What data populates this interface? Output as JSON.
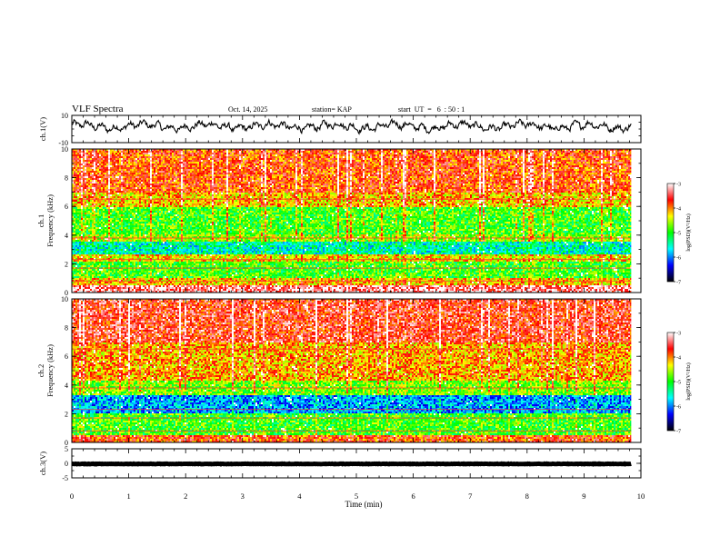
{
  "header": {
    "title": "VLF Spectra",
    "date": "Oct. 14, 2025",
    "station": "station= KAP",
    "start": "start  UT  =   6  : 50 : 1"
  },
  "chart_data": [
    {
      "type": "line",
      "panel": "ch1-waveform",
      "ylabel": "ch.1(V)",
      "ylim": [
        -10,
        10
      ],
      "yticks": [
        "10",
        "-10"
      ],
      "xlim": [
        0,
        10
      ],
      "data_end_min": 9.83,
      "color": "#000000"
    },
    {
      "type": "heatmap",
      "panel": "ch1-spectrogram",
      "ylabel": "ch.1\nFrequency (kHz)",
      "ylim": [
        0,
        10
      ],
      "yticks": [
        "0",
        "2",
        "4",
        "6",
        "8",
        "10"
      ],
      "xlim": [
        0,
        10
      ],
      "data_end_min": 9.83,
      "rows_khz": [
        {
          "f": [
            0,
            0.5
          ],
          "level": -3.3
        },
        {
          "f": [
            0.5,
            1.0
          ],
          "level": -4.2
        },
        {
          "f": [
            1.0,
            2.2
          ],
          "level": -4.9
        },
        {
          "f": [
            2.2,
            2.6
          ],
          "level": -4.3
        },
        {
          "f": [
            2.6,
            3.5
          ],
          "level": -5.5
        },
        {
          "f": [
            3.5,
            4.0
          ],
          "level": -4.6
        },
        {
          "f": [
            4.0,
            6.0
          ],
          "level": -4.9
        },
        {
          "f": [
            6.0,
            7.0
          ],
          "level": -4.2
        },
        {
          "f": [
            7.0,
            10.0
          ],
          "level": -3.8
        }
      ]
    },
    {
      "type": "heatmap",
      "panel": "ch2-spectrogram",
      "ylabel": "ch.2\nFrequency (kHz)",
      "ylim": [
        0,
        10
      ],
      "yticks": [
        "0",
        "2",
        "4",
        "6",
        "8",
        "10"
      ],
      "xlim": [
        0,
        10
      ],
      "data_end_min": 9.83,
      "rows_khz": [
        {
          "f": [
            0,
            0.5
          ],
          "level": -3.8
        },
        {
          "f": [
            0.5,
            2.0
          ],
          "level": -4.9
        },
        {
          "f": [
            2.0,
            3.3
          ],
          "level": -5.9
        },
        {
          "f": [
            3.3,
            4.3
          ],
          "level": -4.7
        },
        {
          "f": [
            4.3,
            7.0
          ],
          "level": -4.1
        },
        {
          "f": [
            7.0,
            10.0
          ],
          "level": -3.6
        }
      ]
    },
    {
      "type": "line",
      "panel": "ch3-waveform",
      "ylabel": "ch.3(V)",
      "ylim": [
        -5,
        5
      ],
      "yticks": [
        "5",
        "0",
        "-5"
      ],
      "xlim": [
        0,
        10
      ],
      "data_end_min": 9.83,
      "level": -0.2,
      "color": "#000000"
    }
  ],
  "colorbar": {
    "label": "log(PSD)(V²/Hz)",
    "range": [
      -7,
      -3
    ],
    "ticks": [
      "-3",
      "-4",
      "-5",
      "-6",
      "-7"
    ],
    "stops": [
      "#000000",
      "#0000ff",
      "#00ffff",
      "#00ff00",
      "#ffff00",
      "#ff0000",
      "#ffffff"
    ]
  },
  "xaxis": {
    "label": "Time (min)",
    "ticks": [
      "0",
      "1",
      "2",
      "3",
      "4",
      "5",
      "6",
      "7",
      "8",
      "9",
      "10"
    ]
  }
}
